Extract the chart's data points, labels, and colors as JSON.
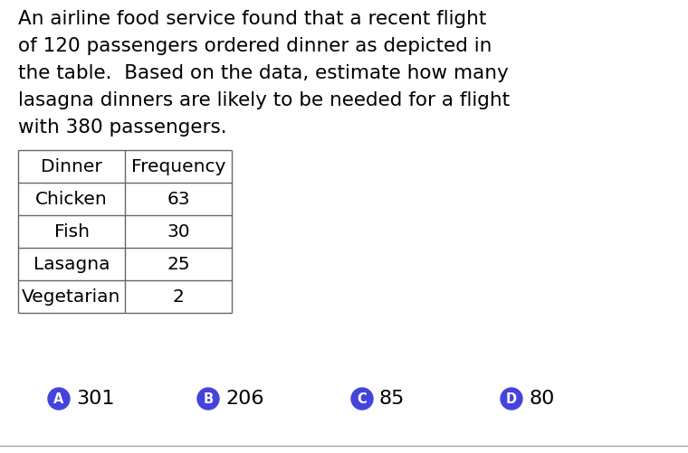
{
  "background_color": "#ffffff",
  "question_text": [
    "An airline food service found that a recent flight",
    "of 120 passengers ordered dinner as depicted in",
    "the table.  Based on the data, estimate how many",
    "lasagna dinners are likely to be needed for a flight",
    "with 380 passengers."
  ],
  "table_headers": [
    "Dinner",
    "Frequency"
  ],
  "table_rows": [
    [
      "Chicken",
      "63"
    ],
    [
      "Fish",
      "30"
    ],
    [
      "Lasagna",
      "25"
    ],
    [
      "Vegetarian",
      "2"
    ]
  ],
  "answer_choices": [
    {
      "label": "A",
      "value": "301"
    },
    {
      "label": "B",
      "value": "206"
    },
    {
      "label": "C",
      "value": "85"
    },
    {
      "label": "D",
      "value": "80"
    }
  ],
  "circle_color": "#4444dd",
  "text_color": "#000000",
  "font_size_question": 15.5,
  "font_size_table": 14.5,
  "font_size_answer": 16.0,
  "font_family": "DejaVu Sans"
}
